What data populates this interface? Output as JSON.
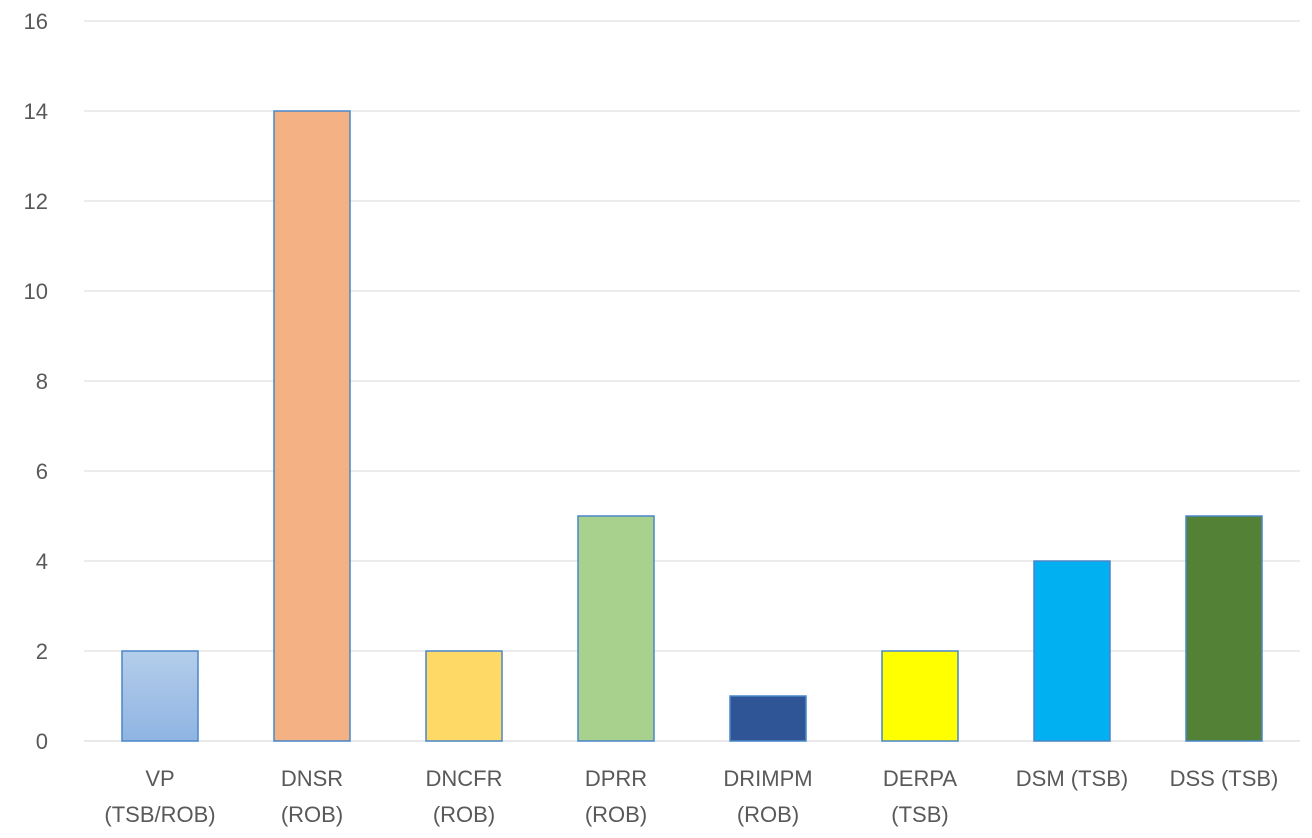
{
  "chart_data": {
    "type": "bar",
    "categories": [
      [
        "VP",
        "(TSB/ROB)"
      ],
      [
        "DNSR",
        "(ROB)"
      ],
      [
        "DNCFR",
        "(ROB)"
      ],
      [
        "DPRR",
        "(ROB)"
      ],
      [
        "DRIMPM",
        "(ROB)"
      ],
      [
        "DERPA",
        "(TSB)"
      ],
      [
        "DSM (TSB)"
      ],
      [
        "DSS (TSB)"
      ]
    ],
    "values": [
      2,
      14,
      2,
      5,
      1,
      2,
      4,
      5
    ],
    "colors": [
      "#9dc3e6",
      "#f4b183",
      "#ffd966",
      "#a9d18e",
      "#2f5597",
      "#ffff00",
      "#00b0f0",
      "#538135"
    ],
    "ylim": [
      0,
      16
    ],
    "yticks": [
      0,
      2,
      4,
      6,
      8,
      10,
      12,
      14,
      16
    ],
    "grid": true,
    "legend": "none",
    "title": "",
    "xlabel": "",
    "ylabel": ""
  }
}
